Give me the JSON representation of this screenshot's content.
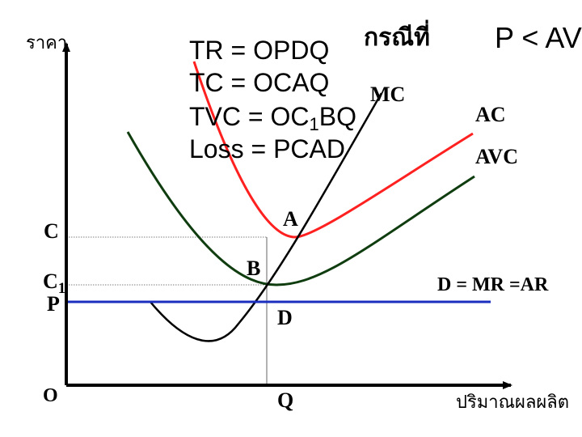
{
  "axes": {
    "y_label": "ราคา",
    "x_label": "ปริมาณผลผลิต",
    "origin": "O"
  },
  "point_labels": {
    "C": "C",
    "C1_base": "C",
    "C1_sub": "1",
    "P": "P",
    "Q": "Q",
    "A": "A",
    "B": "B",
    "D": "D"
  },
  "curve_labels": {
    "MC": "MC",
    "AC": "AC",
    "AVC": "AVC",
    "demand": "D = MR =AR"
  },
  "equations": {
    "tr": "TR = OPDQ",
    "case": "กรณีที่",
    "tc": "TC = OCAQ",
    "tvc_a": "TVC = OC",
    "tvc_sub": "1",
    "tvc_b": "BQ",
    "loss": "Loss = PCAD",
    "condition": "P < AVC"
  },
  "colors": {
    "ac": "#ff2020",
    "avc": "#0f3d0f",
    "mc": "#000000",
    "demand": "#1a2fbf",
    "axis": "#000000",
    "guide": "#7f7f7f"
  }
}
